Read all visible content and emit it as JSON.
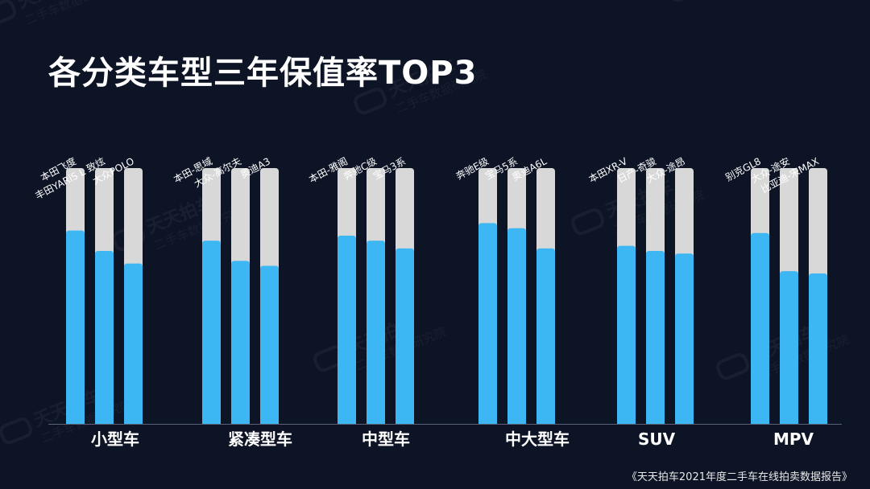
{
  "title": "各分类车型三年保值率TOP3",
  "source": "《天天拍车2021年度二手车在线拍卖数据报告》",
  "watermark": {
    "line1": "天天拍车",
    "line2": "二手车数据研究院"
  },
  "colors": {
    "background": "#0d1425",
    "bar_value": "#3db7f3",
    "bar_track": "#d8d8d8",
    "text": "#ffffff"
  },
  "chart_data": {
    "type": "bar",
    "ylim": [
      0,
      100
    ],
    "groups": [
      {
        "category": "小型车",
        "models": [
          "本田飞度",
          "丰田YARiS L 致炫",
          "大众POLO"
        ],
        "values": [
          75.6,
          67.6,
          62.7
        ]
      },
      {
        "category": "紧凑型车",
        "models": [
          "本田-思域",
          "大众-高尔夫",
          "奥迪A3"
        ],
        "values": [
          71.6,
          63.7,
          61.8
        ]
      },
      {
        "category": "中型车",
        "models": [
          "本田-雅阁",
          "奔驰C级",
          "宝马3系"
        ],
        "values": [
          73.6,
          71.6,
          68.6
        ]
      },
      {
        "category": "中大型车",
        "models": [
          "奔驰E级",
          "宝马5系",
          "奥迪A6L"
        ],
        "values": [
          78.5,
          76.5,
          68.6
        ]
      },
      {
        "category": "SUV",
        "models": [
          "本田XR-V",
          "日产-奇骏",
          "大众-途昂"
        ],
        "values": [
          69.6,
          67.6,
          66.6
        ]
      },
      {
        "category": "MPV",
        "models": [
          "别克GL8",
          "大众-途安",
          "比亚迪-宋MAX"
        ],
        "values": [
          74.6,
          59.7,
          58.8
        ]
      }
    ]
  }
}
